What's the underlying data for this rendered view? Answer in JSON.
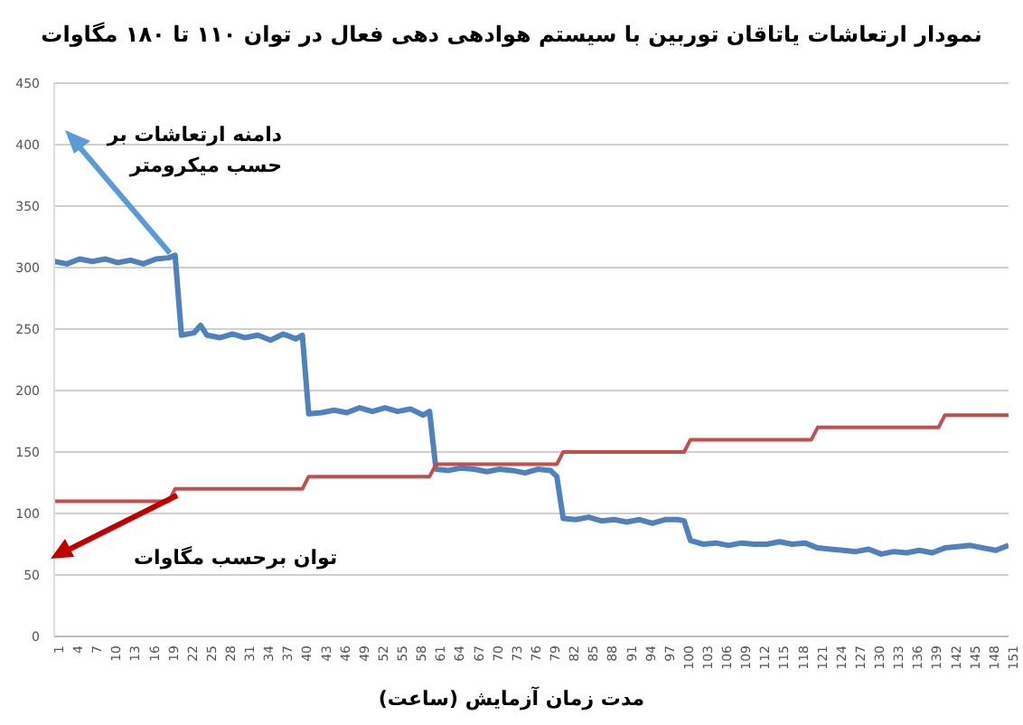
{
  "chart_data": {
    "type": "line",
    "title": "نمودار ارتعاشات یاتاقان توربین با سیستم هوادهی دهی فعال در توان ۱۱۰ تا ۱۸۰ مگاوات",
    "xlabel": "مدت زمان آزمایش (ساعت)",
    "annotations": [
      "دامنه ارتعاشات بر حسب میکرومتر",
      "توان برحسب مگاوات"
    ],
    "xlim": [
      1,
      151
    ],
    "xticks": [
      1,
      4,
      7,
      10,
      13,
      16,
      19,
      22,
      25,
      28,
      31,
      34,
      37,
      40,
      43,
      46,
      49,
      52,
      55,
      58,
      61,
      64,
      67,
      70,
      73,
      76,
      79,
      82,
      85,
      88,
      91,
      94,
      97,
      100,
      103,
      106,
      109,
      112,
      115,
      118,
      121,
      124,
      127,
      130,
      133,
      136,
      139,
      142,
      145,
      148,
      151
    ],
    "ylim": [
      0,
      450
    ],
    "yticks": [
      0,
      50,
      100,
      150,
      200,
      250,
      300,
      350,
      400,
      450
    ],
    "grid": "y",
    "legend": false,
    "marker": "none",
    "line_style": "solid",
    "series": [
      {
        "color": "#4f81bd",
        "x": [
          1,
          3,
          5,
          7,
          9,
          11,
          13,
          15,
          17,
          19,
          20,
          21,
          23,
          24,
          25,
          27,
          29,
          31,
          33,
          35,
          37,
          39,
          40,
          41,
          43,
          45,
          47,
          49,
          51,
          53,
          55,
          57,
          59,
          60,
          61,
          63,
          65,
          67,
          69,
          71,
          73,
          75,
          77,
          79,
          80,
          81,
          83,
          85,
          87,
          89,
          91,
          93,
          95,
          97,
          99,
          100,
          101,
          103,
          105,
          107,
          109,
          111,
          113,
          115,
          117,
          119,
          121,
          123,
          125,
          127,
          129,
          131,
          133,
          135,
          137,
          139,
          141,
          143,
          145,
          147,
          149,
          151
        ],
        "values": [
          305,
          303,
          307,
          305,
          307,
          304,
          306,
          303,
          307,
          308,
          310,
          245,
          247,
          253,
          245,
          243,
          246,
          243,
          245,
          241,
          246,
          242,
          245,
          181,
          182,
          184,
          182,
          186,
          183,
          186,
          183,
          185,
          180,
          183,
          136,
          135,
          137,
          136,
          134,
          136,
          135,
          133,
          136,
          135,
          130,
          96,
          95,
          97,
          94,
          95,
          93,
          95,
          92,
          95,
          95,
          94,
          78,
          75,
          76,
          74,
          76,
          75,
          75,
          77,
          75,
          76,
          72,
          71,
          70,
          69,
          71,
          67,
          69,
          68,
          70,
          68,
          72,
          73,
          74,
          72,
          70,
          74
        ]
      },
      {
        "color": "#c0504d",
        "x": [
          1,
          19,
          20,
          40,
          41,
          60,
          61,
          80,
          81,
          100,
          101,
          120,
          121,
          140,
          141,
          151
        ],
        "values": [
          110,
          110,
          120,
          120,
          130,
          130,
          140,
          140,
          150,
          150,
          160,
          160,
          170,
          170,
          180,
          180
        ]
      }
    ]
  }
}
